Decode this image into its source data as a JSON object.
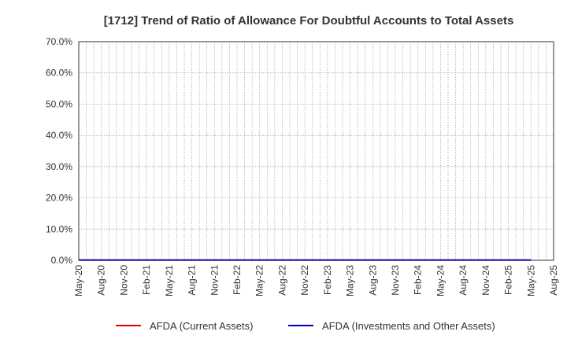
{
  "chart_data": {
    "type": "line",
    "title": "[1712]  Trend of Ratio of Allowance For Doubtful Accounts to Total Assets",
    "xlabel": "",
    "ylabel": "",
    "ylim": [
      0,
      70
    ],
    "y_ticks": [
      "0.0%",
      "10.0%",
      "20.0%",
      "30.0%",
      "40.0%",
      "50.0%",
      "60.0%",
      "70.0%"
    ],
    "x_ticks": [
      "May-20",
      "Aug-20",
      "Nov-20",
      "Feb-21",
      "May-21",
      "Aug-21",
      "Nov-21",
      "Feb-22",
      "May-22",
      "Aug-22",
      "Nov-22",
      "Feb-23",
      "May-23",
      "Aug-23",
      "Nov-23",
      "Feb-24",
      "May-24",
      "Aug-24",
      "Nov-24",
      "Feb-25",
      "May-25",
      "Aug-25"
    ],
    "x": [
      "May-20",
      "Aug-20",
      "Nov-20",
      "Feb-21",
      "May-21",
      "Aug-21",
      "Nov-21",
      "Feb-22",
      "May-22",
      "Aug-22",
      "Nov-22",
      "Feb-23",
      "May-23",
      "Aug-23",
      "Nov-23",
      "Feb-24",
      "May-24",
      "Aug-24",
      "Nov-24",
      "Feb-25",
      "May-25"
    ],
    "grid": true,
    "legend_position": "bottom",
    "series": [
      {
        "name": "AFDA (Current Assets)",
        "color": "#dd0000",
        "values": [
          0.0,
          0.0,
          0.0,
          0.0,
          0.0,
          0.0,
          0.0,
          0.0,
          0.0,
          0.0,
          0.0,
          0.0,
          0.0,
          0.0,
          0.0,
          0.0,
          0.0,
          0.0,
          0.0,
          0.0,
          0.0
        ]
      },
      {
        "name": "AFDA (Investments and Other Assets)",
        "color": "#0000bb",
        "values": [
          0.1,
          0.1,
          0.1,
          0.1,
          0.1,
          0.1,
          0.1,
          0.1,
          0.1,
          0.1,
          0.1,
          0.1,
          0.1,
          0.1,
          0.1,
          0.1,
          0.1,
          0.1,
          0.1,
          0.1,
          0.1
        ]
      }
    ]
  }
}
